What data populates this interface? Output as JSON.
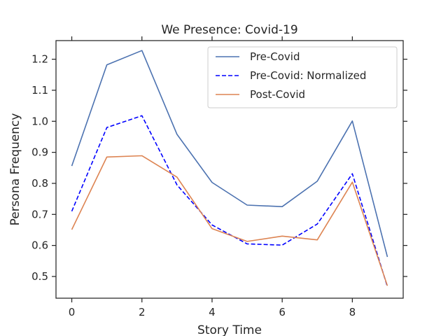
{
  "chart_data": {
    "type": "line",
    "title": "We Presence: Covid-19",
    "xlabel": "Story Time",
    "ylabel": "Persona Frequency",
    "x": [
      0,
      1,
      2,
      3,
      4,
      5,
      6,
      7,
      8,
      9
    ],
    "xlim": [
      -0.45,
      9.45
    ],
    "ylim": [
      0.43,
      1.26
    ],
    "xticks": [
      0,
      2,
      4,
      6,
      8
    ],
    "yticks": [
      0.5,
      0.6,
      0.7,
      0.8,
      0.9,
      1.0,
      1.1,
      1.2
    ],
    "ytick_labels": [
      "0.5",
      "0.6",
      "0.7",
      "0.8",
      "0.9",
      "1.0",
      "1.1",
      "1.2"
    ],
    "legend_position": "top-right",
    "grid": false,
    "series": [
      {
        "name": "Pre-Covid",
        "color": "#4c72b0",
        "dash": "solid",
        "values": [
          0.856,
          1.182,
          1.228,
          0.958,
          0.803,
          0.73,
          0.725,
          0.807,
          1.001,
          0.563
        ]
      },
      {
        "name": "Pre-Covid: Normalized",
        "color": "#0000ff",
        "dash": "dashed",
        "values": [
          0.71,
          0.98,
          1.018,
          0.795,
          0.666,
          0.605,
          0.601,
          0.669,
          0.831,
          0.467
        ]
      },
      {
        "name": "Post-Covid",
        "color": "#dd8452",
        "dash": "solid",
        "values": [
          0.651,
          0.885,
          0.889,
          0.82,
          0.654,
          0.613,
          0.63,
          0.618,
          0.804,
          0.47
        ]
      }
    ]
  }
}
